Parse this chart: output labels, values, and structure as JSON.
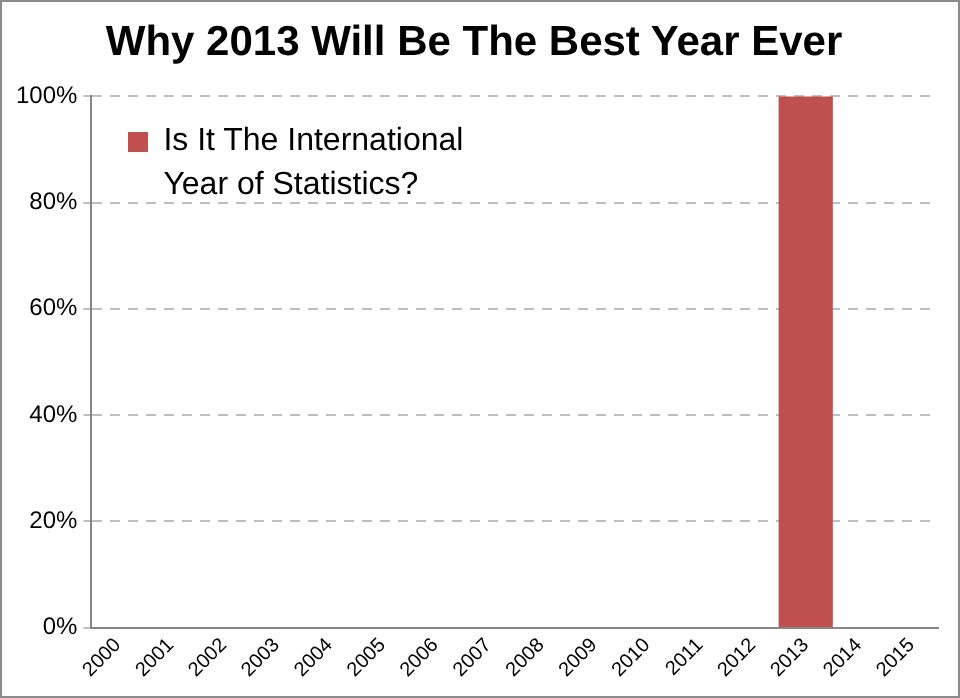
{
  "chart_data": {
    "type": "bar",
    "title": "Why 2013 Will Be The Best Year Ever",
    "categories": [
      "2000",
      "2001",
      "2002",
      "2003",
      "2004",
      "2005",
      "2006",
      "2007",
      "2008",
      "2009",
      "2010",
      "2011",
      "2012",
      "2013",
      "2014",
      "2015"
    ],
    "series": [
      {
        "name": "Is It The International Year of Statistics?",
        "color": "#c0504d",
        "values": [
          null,
          null,
          null,
          null,
          null,
          null,
          null,
          null,
          null,
          null,
          null,
          null,
          null,
          100,
          null,
          null
        ]
      }
    ],
    "ylim": [
      0,
      100
    ],
    "yticks": [
      {
        "value": 0,
        "label": "0%"
      },
      {
        "value": 20,
        "label": "20%"
      },
      {
        "value": 40,
        "label": "40%"
      },
      {
        "value": 60,
        "label": "60%"
      },
      {
        "value": 80,
        "label": "80%"
      },
      {
        "value": 100,
        "label": "100%"
      }
    ],
    "grid": "y",
    "legend": "top left"
  }
}
